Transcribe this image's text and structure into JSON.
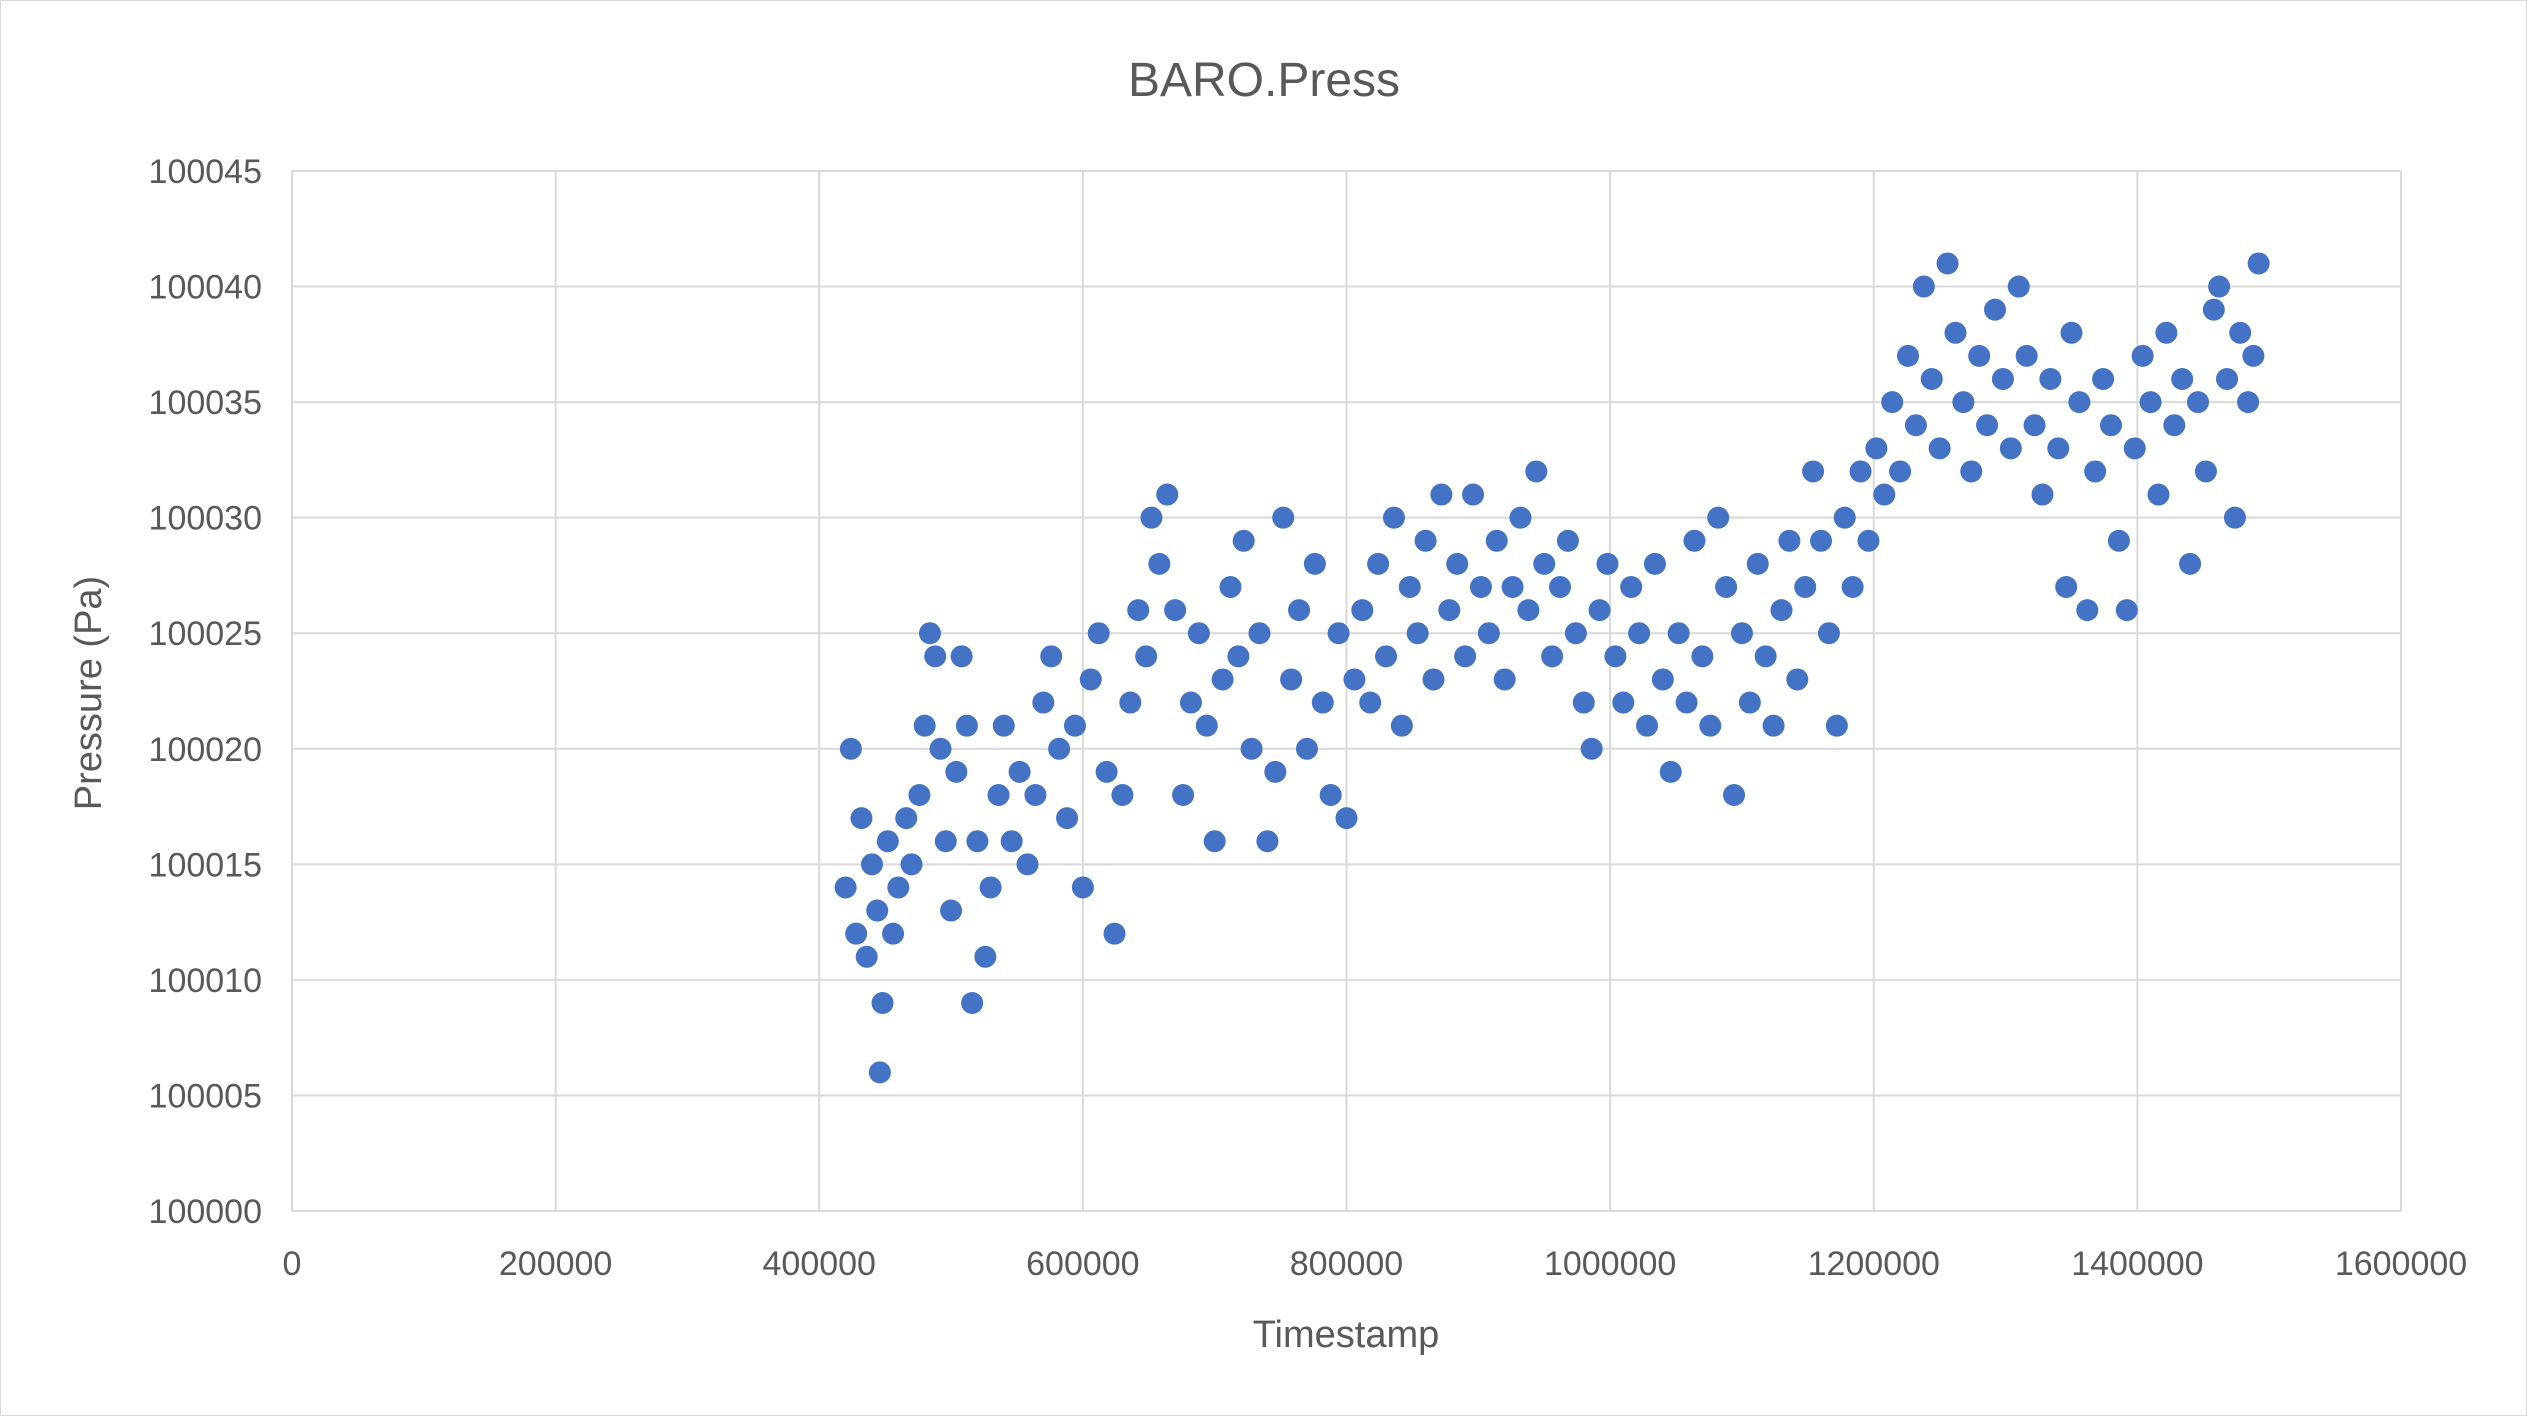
{
  "chart_data": {
    "type": "scatter",
    "title": "BARO.Press",
    "xlabel": "Timestamp",
    "ylabel": "Pressure (Pa)",
    "xlim": [
      0,
      1600000
    ],
    "ylim": [
      100000,
      100045
    ],
    "x_ticks": [
      "0",
      "200000",
      "400000",
      "600000",
      "800000",
      "1000000",
      "1200000",
      "1400000",
      "1600000"
    ],
    "y_ticks": [
      "100000",
      "100005",
      "100010",
      "100015",
      "100020",
      "100025",
      "100030",
      "100035",
      "100040",
      "100045"
    ],
    "grid": true,
    "legend": "none",
    "marker_color": "#4472C4",
    "series": [
      {
        "points": [
          [
            420000,
            100014
          ],
          [
            424000,
            100020
          ],
          [
            428000,
            100012
          ],
          [
            432000,
            100017
          ],
          [
            436000,
            100011
          ],
          [
            440000,
            100015
          ],
          [
            444000,
            100013
          ],
          [
            446000,
            100006
          ],
          [
            448000,
            100009
          ],
          [
            452000,
            100016
          ],
          [
            456000,
            100012
          ],
          [
            460000,
            100014
          ],
          [
            466000,
            100017
          ],
          [
            470000,
            100015
          ],
          [
            476000,
            100018
          ],
          [
            480000,
            100021
          ],
          [
            484000,
            100025
          ],
          [
            488000,
            100024
          ],
          [
            492000,
            100020
          ],
          [
            496000,
            100016
          ],
          [
            500000,
            100013
          ],
          [
            504000,
            100019
          ],
          [
            508000,
            100024
          ],
          [
            512000,
            100021
          ],
          [
            516000,
            100009
          ],
          [
            520000,
            100016
          ],
          [
            526000,
            100011
          ],
          [
            530000,
            100014
          ],
          [
            536000,
            100018
          ],
          [
            540000,
            100021
          ],
          [
            546000,
            100016
          ],
          [
            552000,
            100019
          ],
          [
            558000,
            100015
          ],
          [
            564000,
            100018
          ],
          [
            570000,
            100022
          ],
          [
            576000,
            100024
          ],
          [
            582000,
            100020
          ],
          [
            588000,
            100017
          ],
          [
            594000,
            100021
          ],
          [
            600000,
            100014
          ],
          [
            606000,
            100023
          ],
          [
            612000,
            100025
          ],
          [
            618000,
            100019
          ],
          [
            624000,
            100012
          ],
          [
            630000,
            100018
          ],
          [
            636000,
            100022
          ],
          [
            642000,
            100026
          ],
          [
            648000,
            100024
          ],
          [
            652000,
            100030
          ],
          [
            658000,
            100028
          ],
          [
            664000,
            100031
          ],
          [
            670000,
            100026
          ],
          [
            676000,
            100018
          ],
          [
            682000,
            100022
          ],
          [
            688000,
            100025
          ],
          [
            694000,
            100021
          ],
          [
            700000,
            100016
          ],
          [
            706000,
            100023
          ],
          [
            712000,
            100027
          ],
          [
            718000,
            100024
          ],
          [
            722000,
            100029
          ],
          [
            728000,
            100020
          ],
          [
            734000,
            100025
          ],
          [
            740000,
            100016
          ],
          [
            746000,
            100019
          ],
          [
            752000,
            100030
          ],
          [
            758000,
            100023
          ],
          [
            764000,
            100026
          ],
          [
            770000,
            100020
          ],
          [
            776000,
            100028
          ],
          [
            782000,
            100022
          ],
          [
            788000,
            100018
          ],
          [
            794000,
            100025
          ],
          [
            800000,
            100017
          ],
          [
            806000,
            100023
          ],
          [
            812000,
            100026
          ],
          [
            818000,
            100022
          ],
          [
            824000,
            100028
          ],
          [
            830000,
            100024
          ],
          [
            836000,
            100030
          ],
          [
            842000,
            100021
          ],
          [
            848000,
            100027
          ],
          [
            854000,
            100025
          ],
          [
            860000,
            100029
          ],
          [
            866000,
            100023
          ],
          [
            872000,
            100031
          ],
          [
            878000,
            100026
          ],
          [
            884000,
            100028
          ],
          [
            890000,
            100024
          ],
          [
            896000,
            100031
          ],
          [
            902000,
            100027
          ],
          [
            908000,
            100025
          ],
          [
            914000,
            100029
          ],
          [
            920000,
            100023
          ],
          [
            926000,
            100027
          ],
          [
            932000,
            100030
          ],
          [
            938000,
            100026
          ],
          [
            944000,
            100032
          ],
          [
            950000,
            100028
          ],
          [
            956000,
            100024
          ],
          [
            962000,
            100027
          ],
          [
            968000,
            100029
          ],
          [
            974000,
            100025
          ],
          [
            980000,
            100022
          ],
          [
            986000,
            100020
          ],
          [
            992000,
            100026
          ],
          [
            998000,
            100028
          ],
          [
            1004000,
            100024
          ],
          [
            1010000,
            100022
          ],
          [
            1016000,
            100027
          ],
          [
            1022000,
            100025
          ],
          [
            1028000,
            100021
          ],
          [
            1034000,
            100028
          ],
          [
            1040000,
            100023
          ],
          [
            1046000,
            100019
          ],
          [
            1052000,
            100025
          ],
          [
            1058000,
            100022
          ],
          [
            1064000,
            100029
          ],
          [
            1070000,
            100024
          ],
          [
            1076000,
            100021
          ],
          [
            1082000,
            100030
          ],
          [
            1088000,
            100027
          ],
          [
            1094000,
            100018
          ],
          [
            1100000,
            100025
          ],
          [
            1106000,
            100022
          ],
          [
            1112000,
            100028
          ],
          [
            1118000,
            100024
          ],
          [
            1124000,
            100021
          ],
          [
            1130000,
            100026
          ],
          [
            1136000,
            100029
          ],
          [
            1142000,
            100023
          ],
          [
            1148000,
            100027
          ],
          [
            1154000,
            100032
          ],
          [
            1160000,
            100029
          ],
          [
            1166000,
            100025
          ],
          [
            1172000,
            100021
          ],
          [
            1178000,
            100030
          ],
          [
            1184000,
            100027
          ],
          [
            1190000,
            100032
          ],
          [
            1196000,
            100029
          ],
          [
            1202000,
            100033
          ],
          [
            1208000,
            100031
          ],
          [
            1214000,
            100035
          ],
          [
            1220000,
            100032
          ],
          [
            1226000,
            100037
          ],
          [
            1232000,
            100034
          ],
          [
            1238000,
            100040
          ],
          [
            1244000,
            100036
          ],
          [
            1250000,
            100033
          ],
          [
            1256000,
            100041
          ],
          [
            1262000,
            100038
          ],
          [
            1268000,
            100035
          ],
          [
            1274000,
            100032
          ],
          [
            1280000,
            100037
          ],
          [
            1286000,
            100034
          ],
          [
            1292000,
            100039
          ],
          [
            1298000,
            100036
          ],
          [
            1304000,
            100033
          ],
          [
            1310000,
            100040
          ],
          [
            1316000,
            100037
          ],
          [
            1322000,
            100034
          ],
          [
            1328000,
            100031
          ],
          [
            1334000,
            100036
          ],
          [
            1340000,
            100033
          ],
          [
            1346000,
            100027
          ],
          [
            1350000,
            100038
          ],
          [
            1356000,
            100035
          ],
          [
            1362000,
            100026
          ],
          [
            1368000,
            100032
          ],
          [
            1374000,
            100036
          ],
          [
            1380000,
            100034
          ],
          [
            1386000,
            100029
          ],
          [
            1392000,
            100026
          ],
          [
            1398000,
            100033
          ],
          [
            1404000,
            100037
          ],
          [
            1410000,
            100035
          ],
          [
            1416000,
            100031
          ],
          [
            1422000,
            100038
          ],
          [
            1428000,
            100034
          ],
          [
            1434000,
            100036
          ],
          [
            1440000,
            100028
          ],
          [
            1446000,
            100035
          ],
          [
            1452000,
            100032
          ],
          [
            1458000,
            100039
          ],
          [
            1462000,
            100040
          ],
          [
            1468000,
            100036
          ],
          [
            1474000,
            100030
          ],
          [
            1478000,
            100038
          ],
          [
            1484000,
            100035
          ],
          [
            1488000,
            100037
          ],
          [
            1492000,
            100041
          ]
        ]
      }
    ]
  }
}
